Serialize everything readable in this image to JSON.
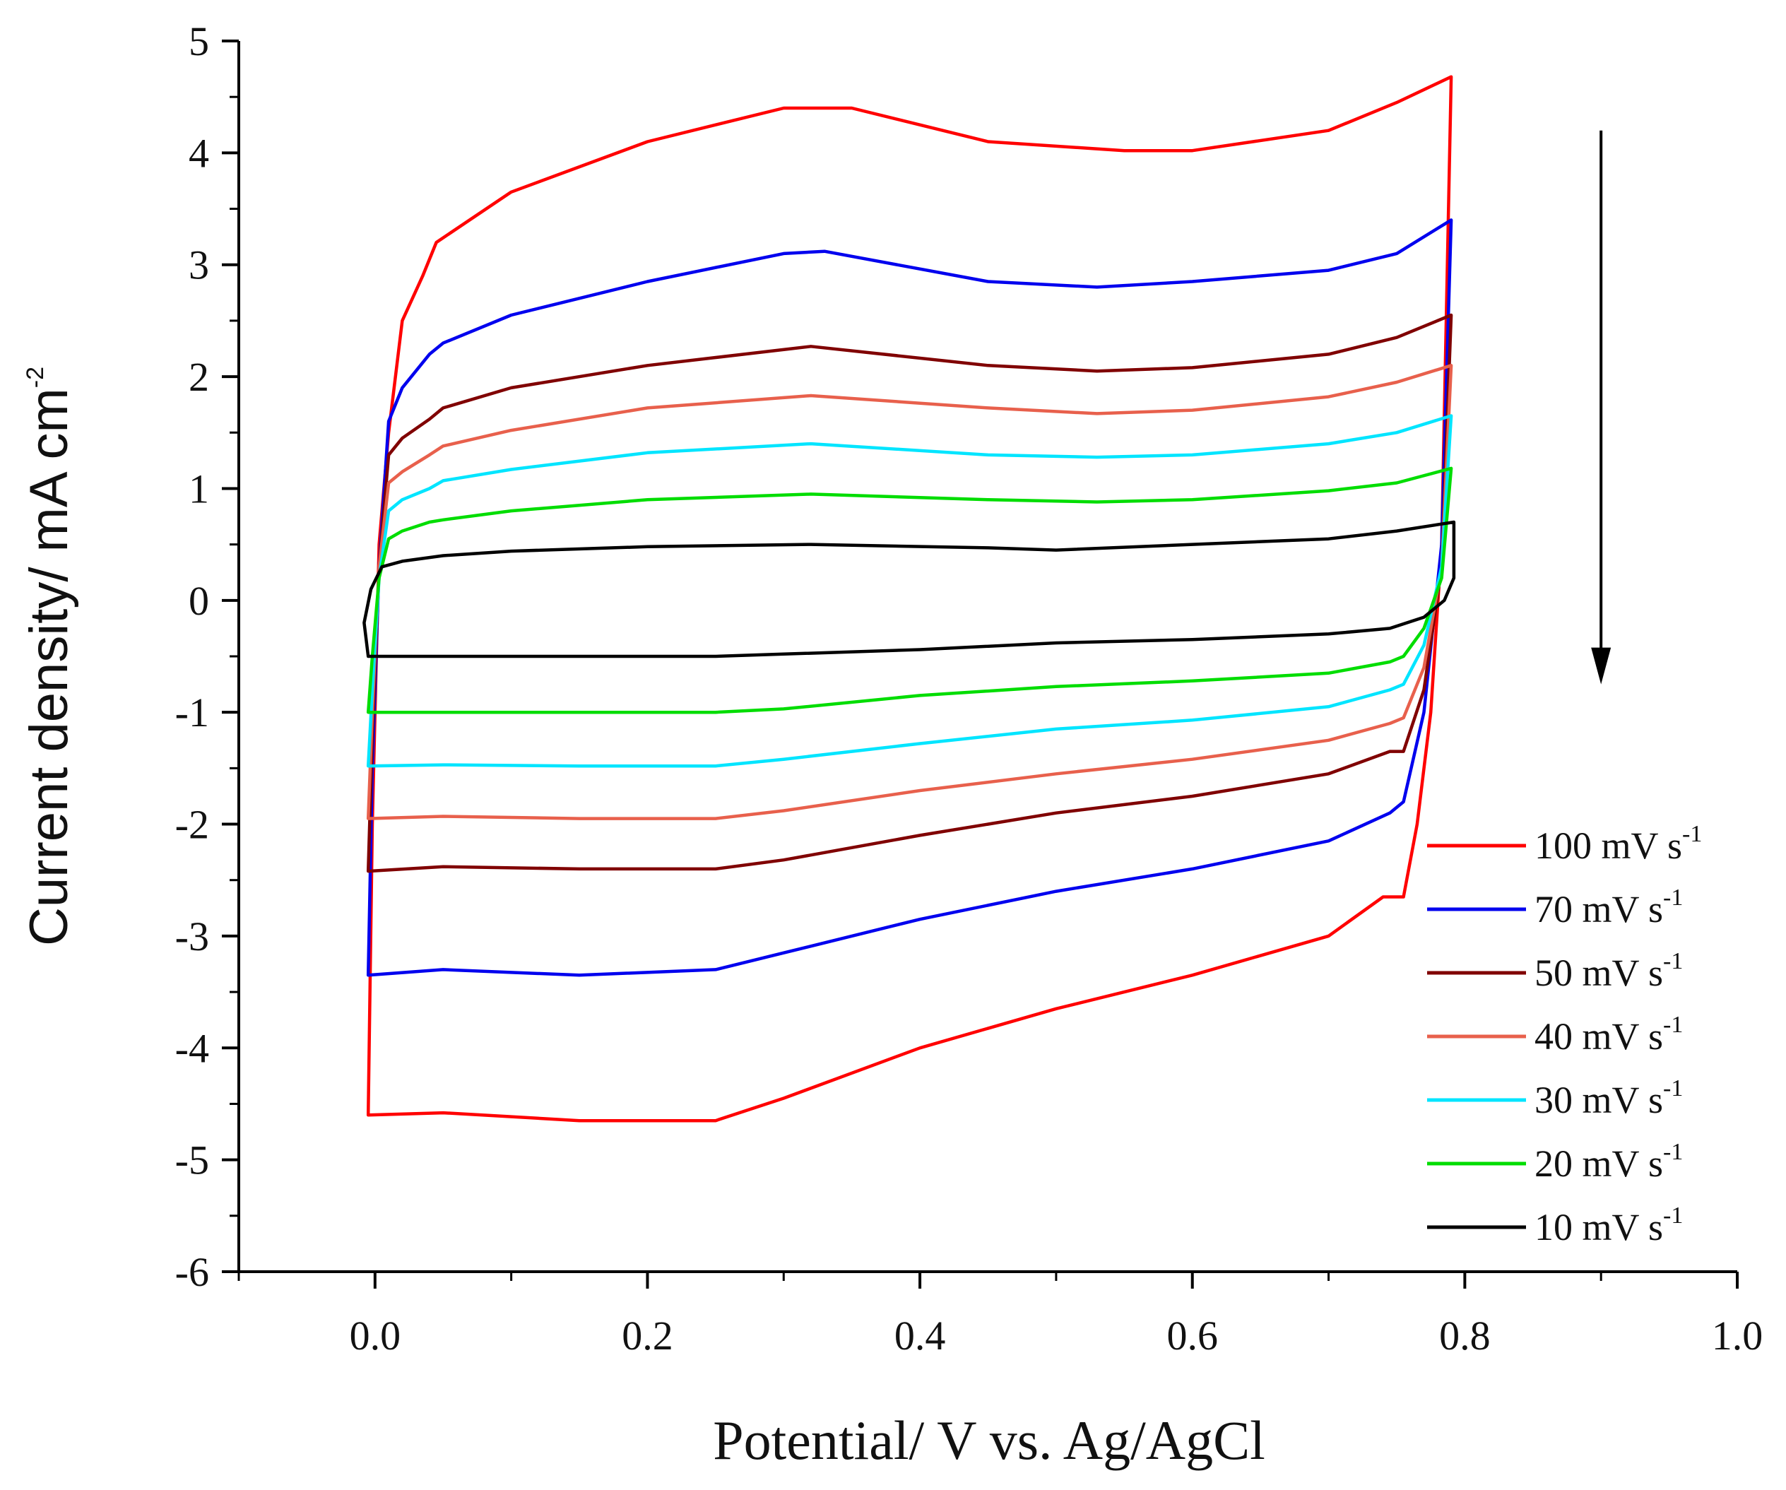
{
  "chart_data": {
    "type": "line",
    "title": "",
    "xlabel": "Potential/ V vs. Ag/AgCl",
    "ylabel": {
      "main": "Current density/ mA cm",
      "superscript": "-2"
    },
    "xlim": [
      -0.1,
      1.0
    ],
    "ylim": [
      -6,
      5
    ],
    "x_ticks": [
      0.0,
      0.2,
      0.4,
      0.6,
      0.8,
      1.0
    ],
    "x_tick_labels": [
      "0.0",
      "0.2",
      "0.4",
      "0.6",
      "0.8",
      "1.0"
    ],
    "y_ticks": [
      5,
      4,
      3,
      2,
      1,
      0,
      -1,
      -2,
      -3,
      -4,
      -5,
      -6
    ],
    "y_tick_labels": [
      "5",
      "4",
      "3",
      "2",
      "1",
      "0",
      "-1",
      "-2",
      "-3",
      "-4",
      "-5",
      "-6"
    ],
    "grid": false,
    "legend_position": "bottom-right",
    "annotations": [
      {
        "type": "arrow",
        "direction": "down",
        "x": 0.9,
        "y_from": 4.2,
        "y_to": -0.75,
        "meaning": "decreasing scan rate"
      }
    ],
    "series": [
      {
        "name": "100 mV s-1",
        "label": "100 mV s",
        "superscript": "-1",
        "color": "#ff0000",
        "points": [
          [
            -0.005,
            -4.6
          ],
          [
            0.05,
            -4.58
          ],
          [
            0.15,
            -4.65
          ],
          [
            0.25,
            -4.65
          ],
          [
            0.3,
            -4.45
          ],
          [
            0.4,
            -4.0
          ],
          [
            0.5,
            -3.65
          ],
          [
            0.6,
            -3.35
          ],
          [
            0.7,
            -3.0
          ],
          [
            0.74,
            -2.65
          ],
          [
            0.755,
            -2.65
          ],
          [
            0.765,
            -2.0
          ],
          [
            0.775,
            -1.0
          ],
          [
            0.783,
            0.5
          ],
          [
            0.79,
            4.68
          ],
          [
            0.75,
            4.45
          ],
          [
            0.7,
            4.2
          ],
          [
            0.6,
            4.02
          ],
          [
            0.55,
            4.02
          ],
          [
            0.45,
            4.1
          ],
          [
            0.35,
            4.4
          ],
          [
            0.3,
            4.4
          ],
          [
            0.2,
            4.1
          ],
          [
            0.1,
            3.65
          ],
          [
            0.045,
            3.2
          ],
          [
            0.035,
            2.9
          ],
          [
            0.02,
            2.5
          ],
          [
            0.01,
            1.5
          ],
          [
            0.003,
            0.5
          ],
          [
            -0.002,
            -2.0
          ],
          [
            -0.005,
            -4.6
          ]
        ]
      },
      {
        "name": "70 mV s-1",
        "label": "70 mV s",
        "superscript": "-1",
        "color": "#0000ee",
        "points": [
          [
            -0.005,
            -3.35
          ],
          [
            0.05,
            -3.3
          ],
          [
            0.15,
            -3.35
          ],
          [
            0.25,
            -3.3
          ],
          [
            0.3,
            -3.15
          ],
          [
            0.4,
            -2.85
          ],
          [
            0.5,
            -2.6
          ],
          [
            0.6,
            -2.4
          ],
          [
            0.7,
            -2.15
          ],
          [
            0.745,
            -1.9
          ],
          [
            0.755,
            -1.8
          ],
          [
            0.77,
            -1.0
          ],
          [
            0.783,
            0.5
          ],
          [
            0.79,
            3.4
          ],
          [
            0.75,
            3.1
          ],
          [
            0.7,
            2.95
          ],
          [
            0.6,
            2.85
          ],
          [
            0.53,
            2.8
          ],
          [
            0.45,
            2.85
          ],
          [
            0.33,
            3.12
          ],
          [
            0.3,
            3.1
          ],
          [
            0.2,
            2.85
          ],
          [
            0.1,
            2.55
          ],
          [
            0.05,
            2.3
          ],
          [
            0.04,
            2.2
          ],
          [
            0.02,
            1.9
          ],
          [
            0.01,
            1.6
          ],
          [
            0.003,
            0.3
          ],
          [
            -0.002,
            -1.5
          ],
          [
            -0.005,
            -3.35
          ]
        ]
      },
      {
        "name": "50 mV s-1",
        "label": "50 mV s",
        "superscript": "-1",
        "color": "#800000",
        "points": [
          [
            -0.005,
            -2.42
          ],
          [
            0.05,
            -2.38
          ],
          [
            0.15,
            -2.4
          ],
          [
            0.25,
            -2.4
          ],
          [
            0.3,
            -2.32
          ],
          [
            0.4,
            -2.1
          ],
          [
            0.5,
            -1.9
          ],
          [
            0.6,
            -1.75
          ],
          [
            0.7,
            -1.55
          ],
          [
            0.745,
            -1.35
          ],
          [
            0.755,
            -1.35
          ],
          [
            0.77,
            -0.8
          ],
          [
            0.783,
            0.3
          ],
          [
            0.79,
            2.55
          ],
          [
            0.75,
            2.35
          ],
          [
            0.7,
            2.2
          ],
          [
            0.6,
            2.08
          ],
          [
            0.53,
            2.05
          ],
          [
            0.45,
            2.1
          ],
          [
            0.32,
            2.27
          ],
          [
            0.2,
            2.1
          ],
          [
            0.1,
            1.9
          ],
          [
            0.05,
            1.72
          ],
          [
            0.04,
            1.62
          ],
          [
            0.02,
            1.45
          ],
          [
            0.01,
            1.3
          ],
          [
            0.003,
            0.3
          ],
          [
            -0.002,
            -1.2
          ],
          [
            -0.005,
            -2.42
          ]
        ]
      },
      {
        "name": "40 mV s-1",
        "label": "40 mV s",
        "superscript": "-1",
        "color": "#e8604c",
        "points": [
          [
            -0.005,
            -1.95
          ],
          [
            0.05,
            -1.93
          ],
          [
            0.15,
            -1.95
          ],
          [
            0.25,
            -1.95
          ],
          [
            0.3,
            -1.88
          ],
          [
            0.4,
            -1.7
          ],
          [
            0.5,
            -1.55
          ],
          [
            0.6,
            -1.42
          ],
          [
            0.7,
            -1.25
          ],
          [
            0.745,
            -1.1
          ],
          [
            0.755,
            -1.05
          ],
          [
            0.77,
            -0.6
          ],
          [
            0.783,
            0.3
          ],
          [
            0.79,
            2.1
          ],
          [
            0.75,
            1.95
          ],
          [
            0.7,
            1.82
          ],
          [
            0.6,
            1.7
          ],
          [
            0.53,
            1.67
          ],
          [
            0.45,
            1.72
          ],
          [
            0.32,
            1.83
          ],
          [
            0.2,
            1.72
          ],
          [
            0.1,
            1.52
          ],
          [
            0.05,
            1.38
          ],
          [
            0.04,
            1.3
          ],
          [
            0.02,
            1.15
          ],
          [
            0.01,
            1.05
          ],
          [
            0.003,
            0.3
          ],
          [
            -0.002,
            -1.0
          ],
          [
            -0.005,
            -1.95
          ]
        ]
      },
      {
        "name": "30 mV s-1",
        "label": "30 mV s",
        "superscript": "-1",
        "color": "#00e5ff",
        "points": [
          [
            -0.005,
            -1.48
          ],
          [
            0.05,
            -1.47
          ],
          [
            0.15,
            -1.48
          ],
          [
            0.25,
            -1.48
          ],
          [
            0.3,
            -1.42
          ],
          [
            0.4,
            -1.28
          ],
          [
            0.5,
            -1.15
          ],
          [
            0.6,
            -1.07
          ],
          [
            0.7,
            -0.95
          ],
          [
            0.745,
            -0.8
          ],
          [
            0.755,
            -0.75
          ],
          [
            0.77,
            -0.4
          ],
          [
            0.783,
            0.3
          ],
          [
            0.79,
            1.65
          ],
          [
            0.75,
            1.5
          ],
          [
            0.7,
            1.4
          ],
          [
            0.6,
            1.3
          ],
          [
            0.53,
            1.28
          ],
          [
            0.45,
            1.3
          ],
          [
            0.32,
            1.4
          ],
          [
            0.2,
            1.32
          ],
          [
            0.1,
            1.17
          ],
          [
            0.05,
            1.07
          ],
          [
            0.04,
            1.0
          ],
          [
            0.02,
            0.9
          ],
          [
            0.01,
            0.8
          ],
          [
            0.003,
            0.2
          ],
          [
            -0.002,
            -0.8
          ],
          [
            -0.005,
            -1.48
          ]
        ]
      },
      {
        "name": "20 mV s-1",
        "label": "20 mV s",
        "superscript": "-1",
        "color": "#00dd00",
        "points": [
          [
            -0.005,
            -1.0
          ],
          [
            0.05,
            -1.0
          ],
          [
            0.15,
            -1.0
          ],
          [
            0.25,
            -1.0
          ],
          [
            0.3,
            -0.97
          ],
          [
            0.4,
            -0.85
          ],
          [
            0.5,
            -0.77
          ],
          [
            0.6,
            -0.72
          ],
          [
            0.7,
            -0.65
          ],
          [
            0.745,
            -0.55
          ],
          [
            0.755,
            -0.5
          ],
          [
            0.77,
            -0.25
          ],
          [
            0.783,
            0.2
          ],
          [
            0.79,
            1.18
          ],
          [
            0.75,
            1.05
          ],
          [
            0.7,
            0.98
          ],
          [
            0.6,
            0.9
          ],
          [
            0.53,
            0.88
          ],
          [
            0.45,
            0.9
          ],
          [
            0.32,
            0.95
          ],
          [
            0.2,
            0.9
          ],
          [
            0.1,
            0.8
          ],
          [
            0.05,
            0.72
          ],
          [
            0.04,
            0.7
          ],
          [
            0.02,
            0.62
          ],
          [
            0.01,
            0.55
          ],
          [
            0.003,
            0.2
          ],
          [
            -0.002,
            -0.5
          ],
          [
            -0.005,
            -1.0
          ]
        ]
      },
      {
        "name": "10 mV s-1",
        "label": "10 mV s",
        "superscript": "-1",
        "color": "#000000",
        "points": [
          [
            -0.005,
            -0.5
          ],
          [
            0.05,
            -0.5
          ],
          [
            0.15,
            -0.5
          ],
          [
            0.25,
            -0.5
          ],
          [
            0.3,
            -0.48
          ],
          [
            0.4,
            -0.44
          ],
          [
            0.5,
            -0.38
          ],
          [
            0.6,
            -0.35
          ],
          [
            0.7,
            -0.3
          ],
          [
            0.745,
            -0.25
          ],
          [
            0.77,
            -0.15
          ],
          [
            0.785,
            0.0
          ],
          [
            0.792,
            0.2
          ],
          [
            0.792,
            0.7
          ],
          [
            0.75,
            0.62
          ],
          [
            0.7,
            0.55
          ],
          [
            0.6,
            0.5
          ],
          [
            0.5,
            0.45
          ],
          [
            0.45,
            0.47
          ],
          [
            0.32,
            0.5
          ],
          [
            0.2,
            0.48
          ],
          [
            0.1,
            0.44
          ],
          [
            0.05,
            0.4
          ],
          [
            0.02,
            0.35
          ],
          [
            0.005,
            0.3
          ],
          [
            -0.003,
            0.1
          ],
          [
            -0.008,
            -0.2
          ],
          [
            -0.005,
            -0.5
          ]
        ]
      }
    ]
  }
}
